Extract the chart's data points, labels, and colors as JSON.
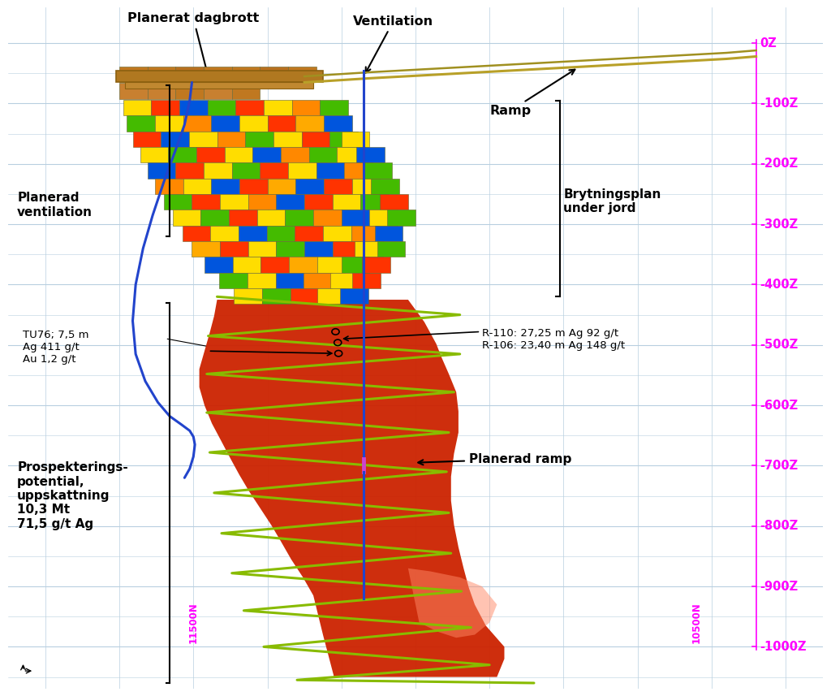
{
  "bg_color": "#ffffff",
  "grid_color": "#b8cfe0",
  "magenta": "#ff00ff",
  "blue_line_color": "#2244cc",
  "green_ramp_color": "#88bb00",
  "ore_red": "#cc2200",
  "brown_top": "#b07820",
  "right_tick_labels": [
    "0Z",
    "-100Z",
    "-200Z",
    "-300Z",
    "-400Z",
    "-500Z",
    "-600Z",
    "-700Z",
    "-800Z",
    "-900Z",
    "-1000Z"
  ],
  "right_tick_y": [
    0,
    -100,
    -200,
    -300,
    -400,
    -500,
    -600,
    -700,
    -800,
    -900,
    -1000
  ],
  "label_planerat_dagbrott": "Planerat dagbrott",
  "label_ventilation": "Ventilation",
  "label_ramp": "Ramp",
  "label_planerad_ventilation": "Planerad\nventilation",
  "label_brytningsplan": "Brytningsplan\nunder jord",
  "label_planerad_ramp": "Planerad ramp",
  "label_tu76": "TU76; 7,5 m\nAg 411 g/t\nAu 1,2 g/t",
  "label_r110_r106": "R-110: 27,25 m Ag 92 g/t\nR-106: 23,40 m Ag 148 g/t",
  "label_prospektering": "Prospekterings-\npotential,\nuppskattning\n10,3 Mt\n71,5 g/t Ag",
  "label_11500N": "11500N",
  "label_10500N": "10500N"
}
